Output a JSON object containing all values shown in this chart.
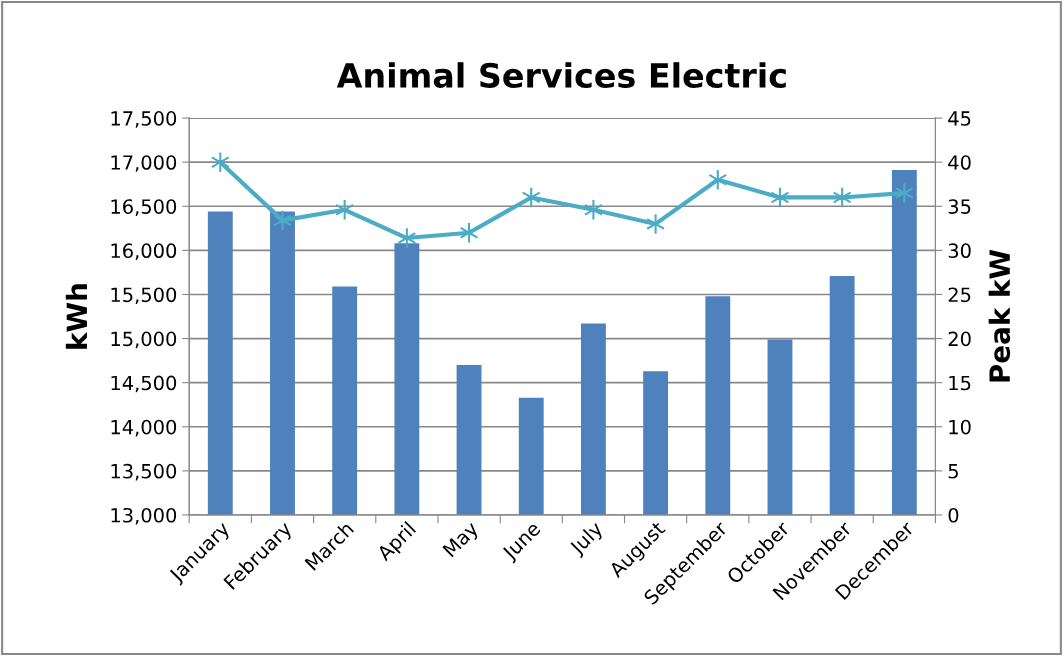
{
  "chart_data": {
    "type": "bar",
    "title": "Animal Services Electric",
    "ylabel": "kWh",
    "y2label": "Peak kW",
    "categories": [
      "January",
      "February",
      "March",
      "April",
      "May",
      "June",
      "July",
      "August",
      "September",
      "October",
      "November",
      "December"
    ],
    "series": [
      {
        "color": "#4f81bd",
        "values": [
          16440,
          16440,
          15590,
          16080,
          14700,
          14330,
          15170,
          14630,
          15480,
          14990,
          15710,
          16910
        ]
      },
      {
        "type": "line",
        "axis": "y2",
        "color": "#4bacc6",
        "marker": "cross",
        "values": [
          40,
          33.4,
          34.6,
          31.4,
          32,
          36,
          34.6,
          33,
          38,
          36,
          36,
          36.5
        ]
      }
    ],
    "ylim": [
      13000,
      17500
    ],
    "yticks": [
      {
        "value": 13000,
        "label": "13,000"
      },
      {
        "value": 13500,
        "label": "13,500"
      },
      {
        "value": 14000,
        "label": "14,000"
      },
      {
        "value": 14500,
        "label": "14,500"
      },
      {
        "value": 15000,
        "label": "15,000"
      },
      {
        "value": 15500,
        "label": "15,500"
      },
      {
        "value": 16000,
        "label": "16,000"
      },
      {
        "value": 16500,
        "label": "16,500"
      },
      {
        "value": 17000,
        "label": "17,000"
      },
      {
        "value": 17500,
        "label": "17,500"
      }
    ],
    "y2lim": [
      0,
      45
    ],
    "y2ticks": [
      0,
      5,
      10,
      15,
      20,
      25,
      30,
      35,
      40,
      45
    ],
    "grid": "y"
  }
}
